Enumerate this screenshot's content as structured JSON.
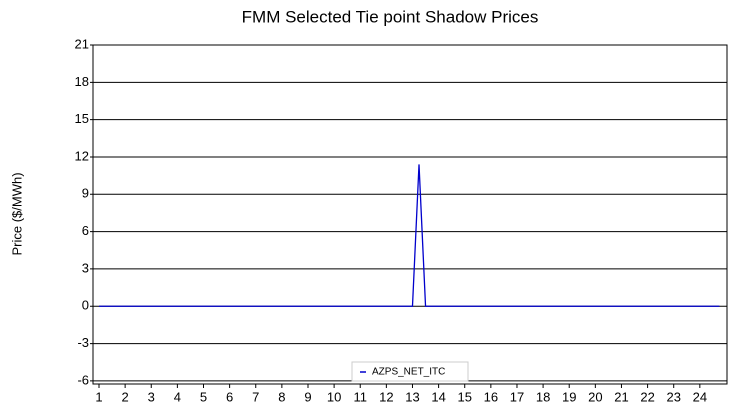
{
  "chart_data": {
    "type": "line",
    "title": "FMM Selected Tie point Shadow Prices",
    "y_label": "Price ($/MWh)",
    "x": [
      1,
      13,
      13.25,
      13.5,
      24.75
    ],
    "series": [
      {
        "name": "AZPS_NET_ITC",
        "color": "#0000cc",
        "values": [
          0,
          0,
          11.4,
          0,
          0
        ]
      }
    ],
    "xlim": [
      0.77,
      25.04
    ],
    "xticks": [
      1,
      2,
      3,
      4,
      5,
      6,
      7,
      8,
      9,
      10,
      11,
      12,
      13,
      14,
      15,
      16,
      17,
      18,
      19,
      20,
      21,
      22,
      23,
      24
    ],
    "ylim": [
      -6.25,
      21
    ],
    "yticks": [
      -6,
      -3,
      0,
      3,
      6,
      9,
      12,
      15,
      18,
      21
    ],
    "grid": true,
    "legend": "bottom"
  }
}
